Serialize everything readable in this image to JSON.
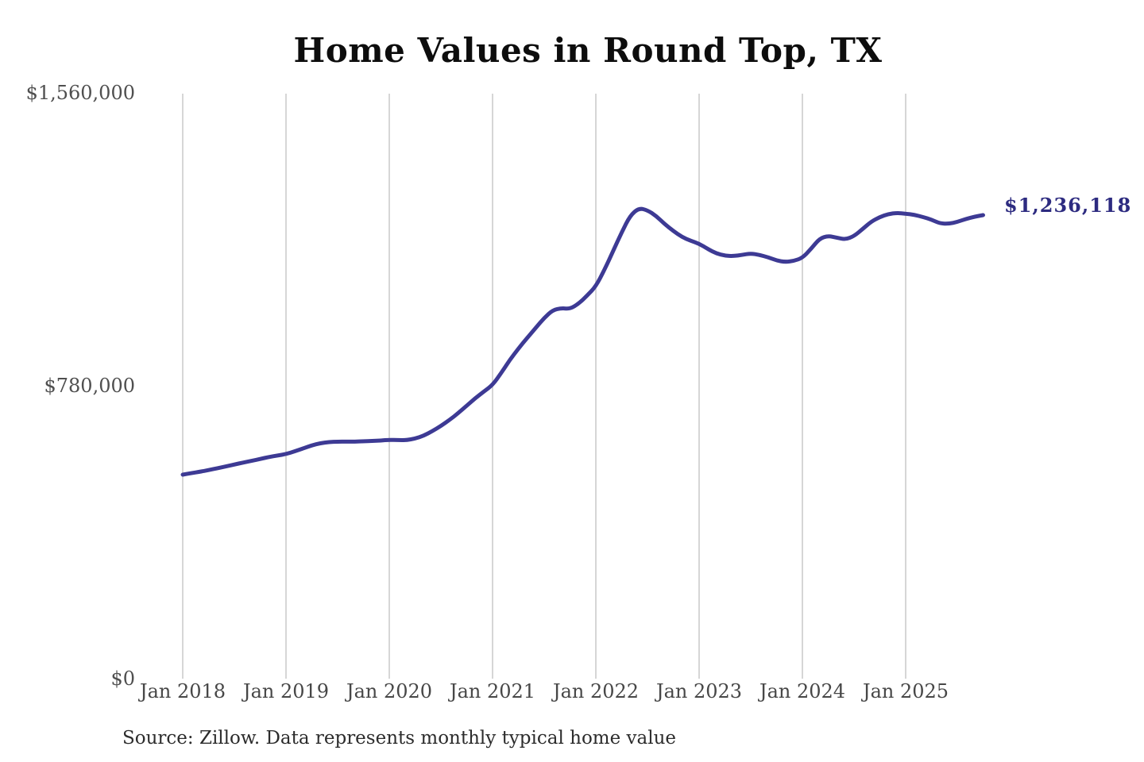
{
  "title": "Home Values in Round Top, TX",
  "footer": {
    "source_note": "Source: Zillow. Data represents monthly typical home value"
  },
  "colors": {
    "background": "#ffffff",
    "line": "#3d3a94",
    "end_label": "#2d2b80",
    "gridline": "#c9c9c9",
    "axis_text": "#4f4f4f",
    "title_text": "#0d0d0d",
    "source_text": "#2c2c2c"
  },
  "chart_data": {
    "type": "line",
    "title": "Home Values in Round Top, TX",
    "x_first_month": "2018-01",
    "x_interval": "month",
    "x_tick_labels": [
      "Jan 2018",
      "Jan 2019",
      "Jan 2020",
      "Jan 2021",
      "Jan 2022",
      "Jan 2023",
      "Jan 2024",
      "Jan 2025"
    ],
    "y_tick_labels": [
      "$1,560,000",
      "$780,000",
      "$0"
    ],
    "y_tick_values": [
      1560000,
      780000,
      0
    ],
    "ylim": [
      0,
      1560000
    ],
    "grid": "vertical",
    "legend": "none",
    "end_point_label": "$1,236,118",
    "end_point_value": 1236118,
    "values": [
      544000,
      548000,
      552000,
      556000,
      561000,
      566000,
      571000,
      576000,
      581000,
      586000,
      591000,
      595000,
      599000,
      606000,
      614000,
      622000,
      628000,
      631000,
      632000,
      632000,
      632000,
      633000,
      634000,
      635000,
      637000,
      636000,
      636000,
      640000,
      648000,
      660000,
      674000,
      690000,
      708000,
      728000,
      748000,
      766000,
      783000,
      815000,
      850000,
      880000,
      908000,
      935000,
      962000,
      983000,
      988000,
      986000,
      1000000,
      1022000,
      1046000,
      1090000,
      1140000,
      1190000,
      1235000,
      1255000,
      1249000,
      1234000,
      1212000,
      1194000,
      1178000,
      1168000,
      1160000,
      1146000,
      1134000,
      1128000,
      1127000,
      1130000,
      1134000,
      1130000,
      1124000,
      1115000,
      1111000,
      1114000,
      1122000,
      1146000,
      1174000,
      1181000,
      1176000,
      1171000,
      1180000,
      1199000,
      1219000,
      1231000,
      1239000,
      1242000,
      1240000,
      1237000,
      1231000,
      1224000,
      1214000,
      1213000,
      1218000,
      1226000,
      1232000,
      1236118
    ]
  }
}
